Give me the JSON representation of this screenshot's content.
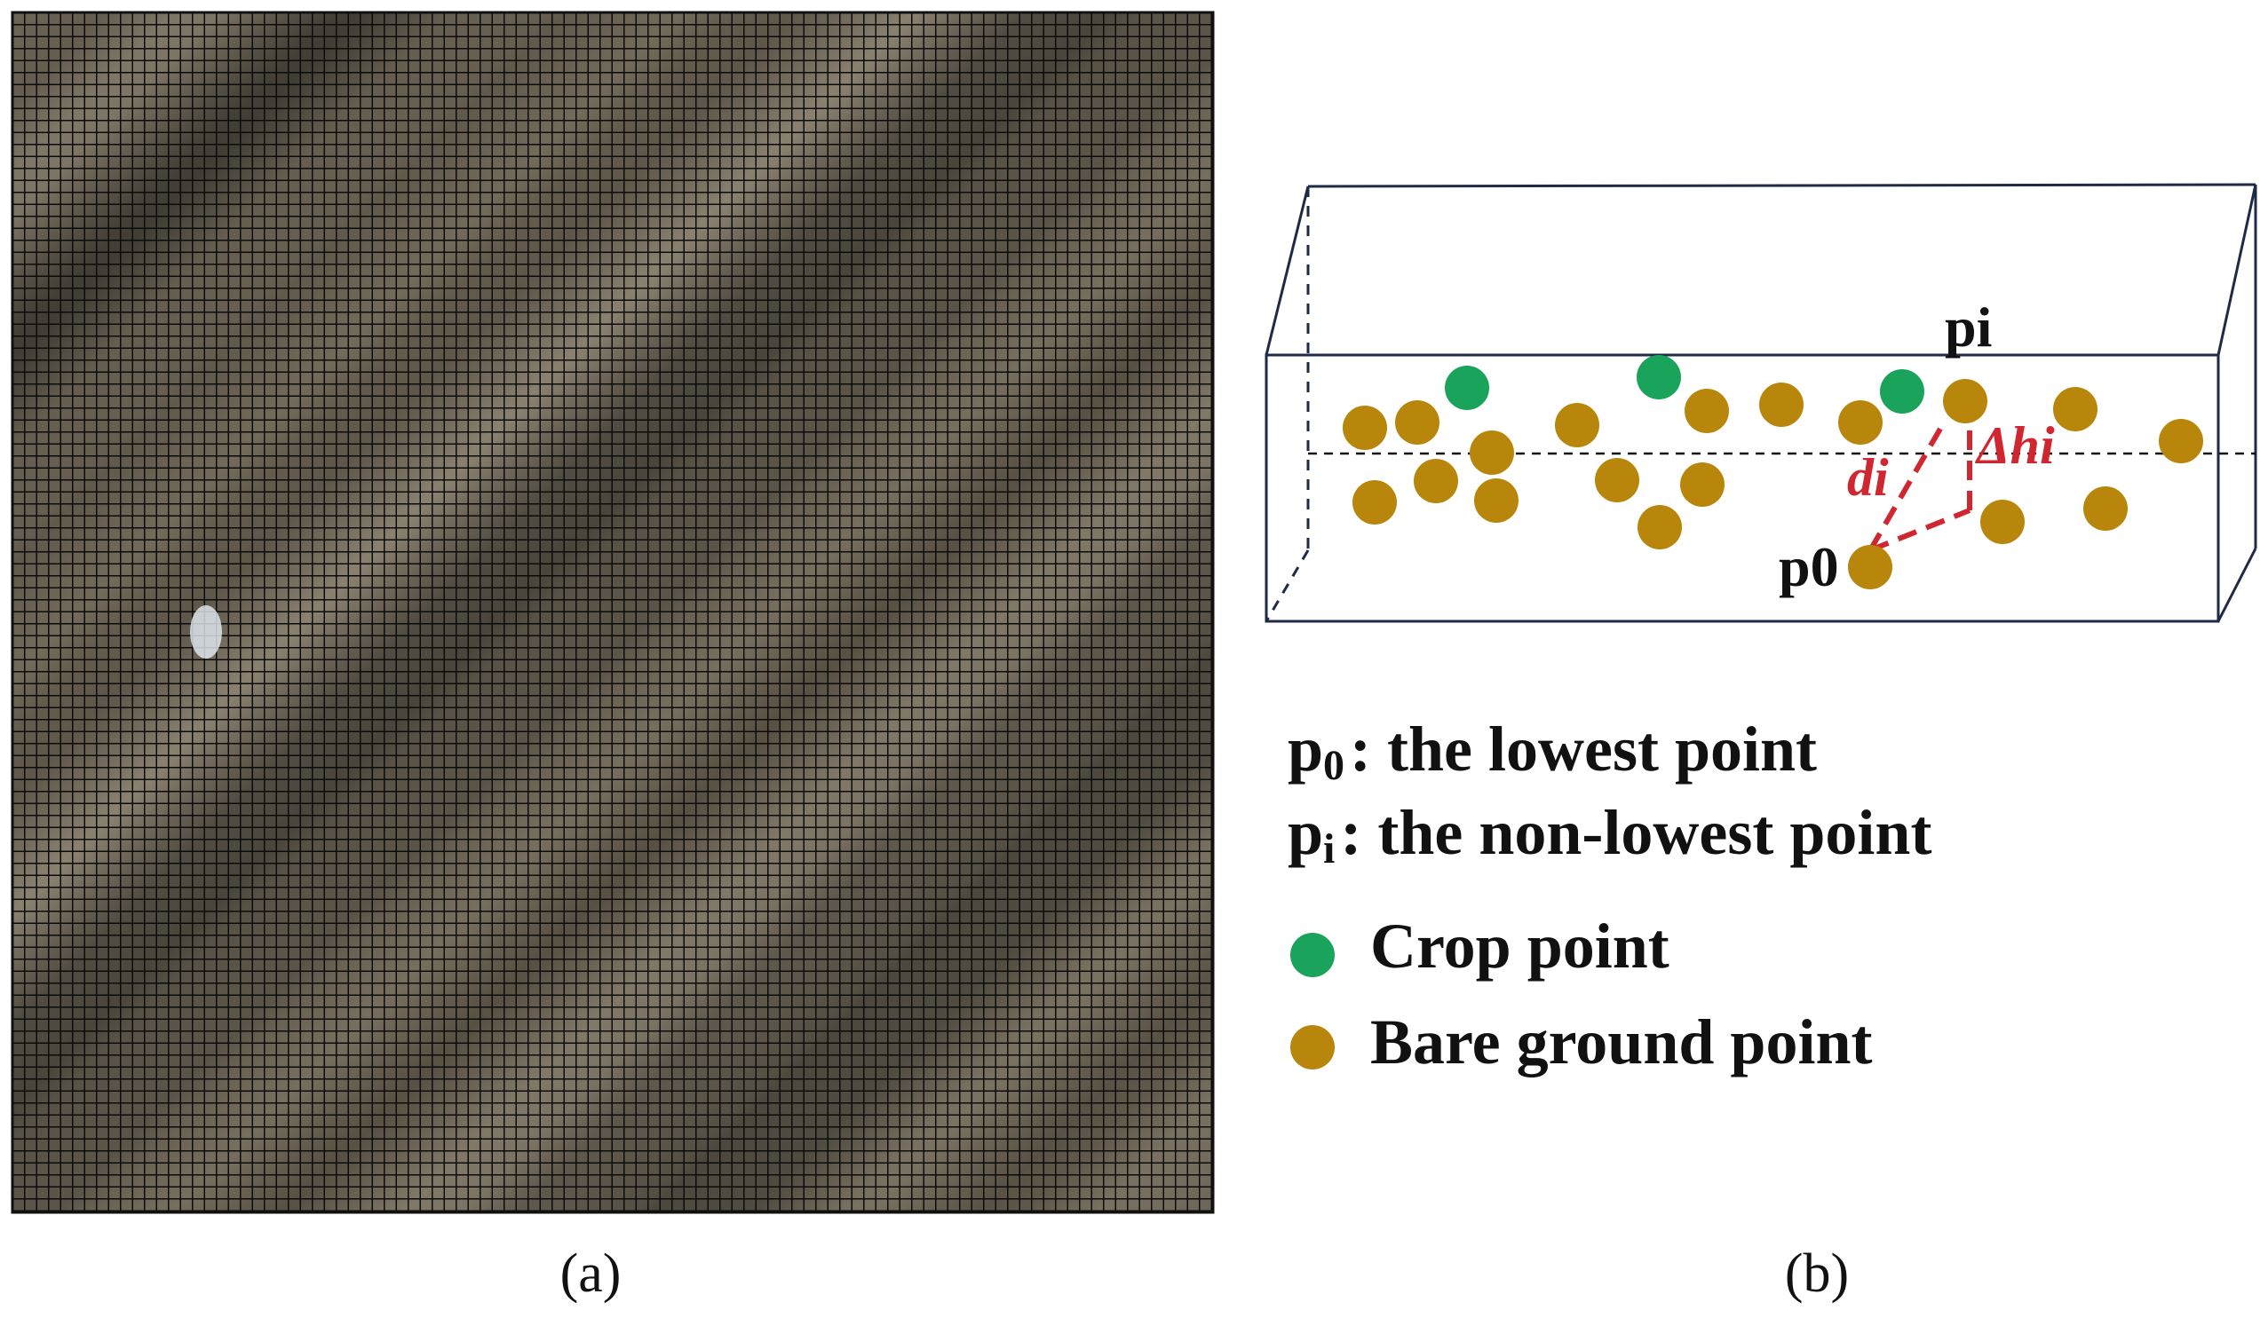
{
  "panel_a": {
    "caption": "(a)",
    "image_desc_icon": "field-grid-photo"
  },
  "panel_b": {
    "caption": "(b)",
    "labels": {
      "pi": "pi",
      "p0": "p0",
      "di": "di",
      "dhi": "Δhi"
    },
    "legend": {
      "p0_line": {
        "symbol": "p",
        "sub": "0",
        "text": ": the  lowest point"
      },
      "pi_line": {
        "symbol": "p",
        "sub": "i",
        "text": ": the non-lowest point"
      },
      "crop": "Crop point",
      "bare": "Bare ground point"
    },
    "crop_points": [
      [
        1652,
        437
      ],
      [
        1868,
        425
      ],
      [
        2142,
        441
      ]
    ],
    "bare_points": [
      [
        1537,
        482
      ],
      [
        1596,
        476
      ],
      [
        1680,
        510
      ],
      [
        1776,
        479
      ],
      [
        1922,
        463
      ],
      [
        2006,
        456
      ],
      [
        2095,
        476
      ],
      [
        2213,
        452
      ],
      [
        2337,
        461
      ],
      [
        2456,
        497
      ],
      [
        1548,
        566
      ],
      [
        1617,
        542
      ],
      [
        1685,
        564
      ],
      [
        1821,
        541
      ],
      [
        1917,
        546
      ],
      [
        1869,
        594
      ],
      [
        2255,
        588
      ],
      [
        2371,
        573
      ],
      [
        2106,
        639
      ]
    ]
  },
  "colors": {
    "crop": "#1aa35a",
    "bare": "#b8860b",
    "annotation": "#d0262f",
    "box_line": "#1f2a44"
  }
}
